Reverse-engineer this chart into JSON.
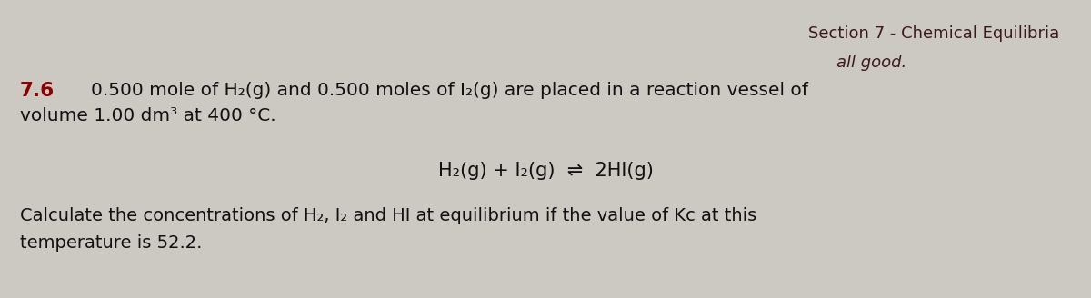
{
  "bg_color": "#ccc9c3",
  "section_header": "Section 7 - Chemical Equilibria",
  "section_header_color": "#3d1a1a",
  "annotation": "all good.",
  "annotation_color": "#3d1a1a",
  "problem_number": "7.6",
  "problem_number_color": "#8B0000",
  "line1": "0.500 mole of H₂(g) and 0.500 moles of I₂(g) are placed in a reaction vessel of",
  "line2": "volume 1.00 dm³ at 400 °C.",
  "equation": "H₂(g) + I₂(g)  ⇌  2HI(g)",
  "footer_line1": "Calculate the concentrations of H₂, I₂ and HI at equilibrium if the value of Kᴄ at this",
  "footer_line2": "temperature is 52.2.",
  "main_text_color": "#111111",
  "font_size_header": 13,
  "font_size_main": 14.5,
  "font_size_number": 15.5,
  "font_size_equation": 15,
  "font_size_footer": 14,
  "font_size_annotation": 13
}
